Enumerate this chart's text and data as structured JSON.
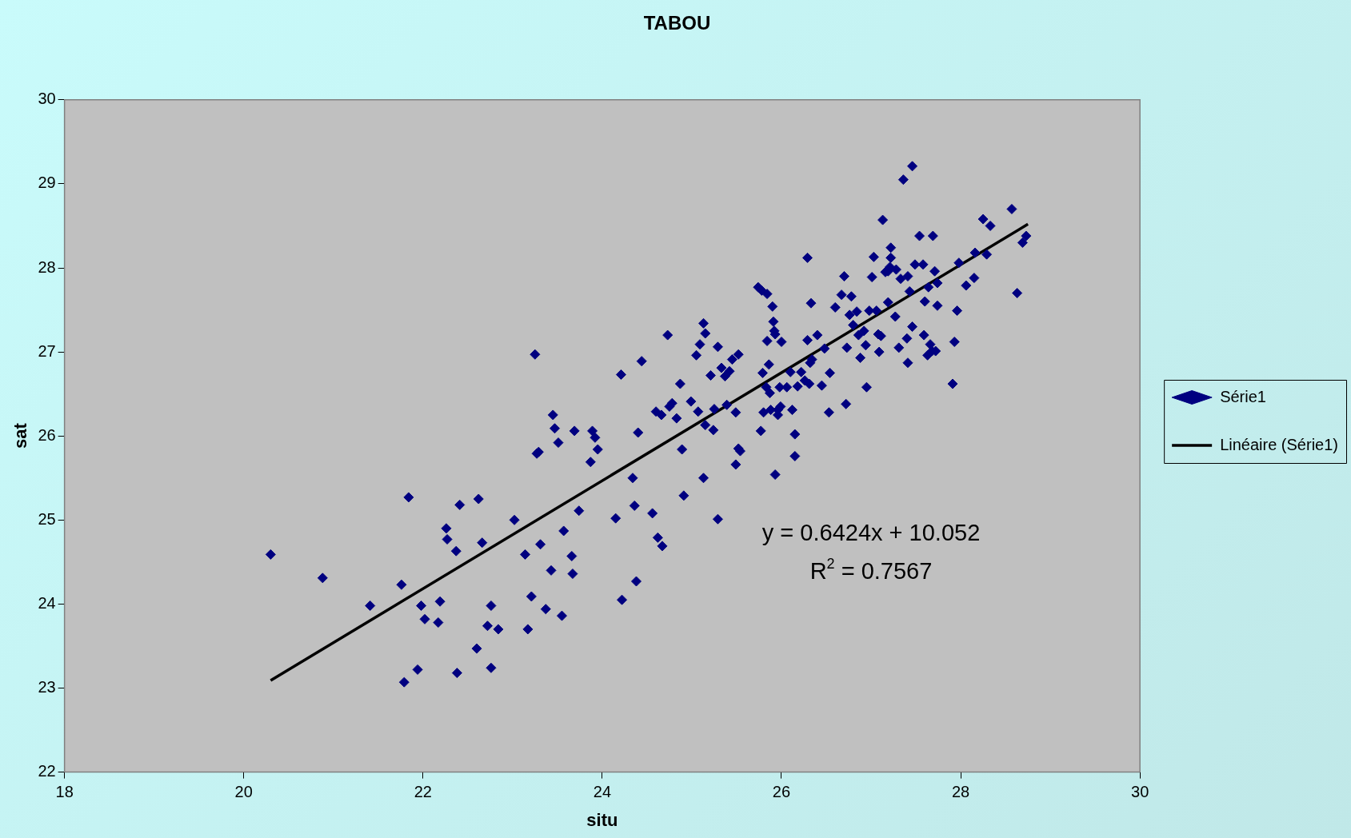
{
  "chart_data": {
    "type": "scatter",
    "title": "TABOU",
    "xlabel": "situ",
    "ylabel": "sat",
    "xlim": [
      18,
      30
    ],
    "xticks": [
      18,
      20,
      22,
      24,
      26,
      28,
      30
    ],
    "ylim": [
      22,
      30
    ],
    "yticks": [
      22,
      23,
      24,
      25,
      26,
      27,
      28,
      29,
      30
    ],
    "legend": "right",
    "marker": "diamond",
    "annotations": [
      "y = 0.6424x + 10.052",
      "R$^{2}$ = 0.7567"
    ],
    "series": [
      {
        "name": "Série1",
        "color": "#000080",
        "x": [
          20.3,
          20.88,
          21.41,
          21.76,
          21.84,
          21.79,
          21.94,
          21.98,
          22.02,
          22.17,
          22.19,
          22.26,
          22.27,
          22.37,
          22.41,
          22.38,
          22.6,
          22.62,
          22.66,
          22.72,
          22.76,
          22.76,
          22.84,
          23.02,
          23.14,
          23.17,
          23.21,
          23.25,
          23.27,
          23.29,
          23.31,
          23.37,
          23.43,
          23.45,
          23.47,
          23.51,
          23.55,
          23.57,
          23.66,
          23.67,
          23.69,
          23.74,
          23.87,
          23.89,
          23.92,
          23.95,
          24.15,
          24.21,
          24.22,
          24.34,
          24.36,
          24.38,
          24.4,
          24.44,
          24.56,
          24.6,
          24.62,
          24.66,
          24.67,
          24.73,
          24.75,
          24.78,
          24.83,
          24.87,
          24.89,
          24.91,
          24.99,
          25.05,
          25.07,
          25.09,
          25.13,
          25.15,
          25.13,
          25.15,
          25.21,
          25.24,
          25.25,
          25.29,
          25.29,
          25.33,
          25.37,
          25.39,
          25.42,
          25.45,
          25.49,
          25.49,
          25.52,
          25.52,
          25.54,
          25.74,
          25.78,
          25.84,
          25.77,
          25.79,
          25.8,
          25.83,
          25.84,
          25.86,
          25.87,
          25.88,
          25.9,
          25.91,
          25.92,
          25.93,
          25.93,
          25.96,
          25.96,
          25.98,
          26.0,
          25.99,
          26.06,
          26.1,
          26.12,
          26.15,
          26.15,
          26.18,
          26.22,
          26.26,
          26.29,
          26.29,
          26.31,
          26.32,
          26.33,
          26.34,
          26.4,
          26.45,
          26.48,
          26.53,
          26.54,
          26.6,
          26.67,
          26.7,
          26.72,
          26.73,
          26.76,
          26.78,
          26.8,
          26.84,
          26.86,
          26.88,
          26.92,
          26.94,
          26.95,
          26.98,
          27.01,
          27.03,
          27.06,
          27.08,
          27.09,
          27.11,
          27.13,
          27.16,
          27.19,
          27.19,
          27.21,
          27.22,
          27.22,
          27.27,
          27.28,
          27.31,
          27.33,
          27.36,
          27.4,
          27.41,
          27.41,
          27.43,
          27.46,
          27.46,
          27.49,
          27.54,
          27.58,
          27.59,
          27.6,
          27.63,
          27.66,
          27.64,
          27.69,
          27.68,
          27.71,
          27.72,
          27.74,
          27.74,
          27.91,
          27.93,
          27.96,
          27.98,
          28.06,
          28.15,
          28.16,
          28.25,
          28.29,
          28.33,
          28.57,
          28.63,
          28.69,
          28.73
        ],
        "values": [
          24.59,
          24.31,
          23.98,
          24.23,
          25.27,
          23.07,
          23.22,
          23.98,
          23.82,
          23.78,
          24.03,
          24.9,
          24.77,
          24.63,
          25.18,
          23.18,
          23.47,
          25.25,
          24.73,
          23.74,
          23.98,
          23.24,
          23.7,
          25.0,
          24.59,
          23.7,
          24.09,
          26.97,
          25.79,
          25.81,
          24.71,
          23.94,
          24.4,
          26.25,
          26.09,
          25.92,
          23.86,
          24.87,
          24.57,
          24.36,
          26.06,
          25.11,
          25.69,
          26.06,
          25.98,
          25.84,
          25.02,
          26.73,
          24.05,
          25.5,
          25.17,
          24.27,
          26.04,
          26.89,
          25.08,
          26.29,
          24.79,
          26.25,
          24.69,
          27.2,
          26.35,
          26.39,
          26.21,
          26.62,
          25.84,
          25.29,
          26.41,
          26.96,
          26.29,
          27.09,
          27.34,
          27.22,
          25.5,
          26.13,
          26.72,
          26.07,
          26.32,
          27.06,
          25.01,
          26.81,
          26.71,
          26.37,
          26.77,
          26.91,
          25.66,
          26.28,
          26.97,
          25.85,
          25.82,
          27.77,
          27.73,
          27.69,
          26.06,
          26.75,
          26.28,
          26.58,
          27.13,
          26.85,
          26.51,
          26.31,
          27.54,
          27.36,
          27.25,
          27.21,
          25.54,
          26.31,
          26.25,
          26.58,
          27.12,
          26.35,
          26.58,
          26.76,
          26.31,
          25.76,
          26.02,
          26.59,
          26.76,
          26.66,
          28.12,
          27.14,
          26.62,
          26.87,
          27.58,
          26.91,
          27.2,
          26.6,
          27.04,
          26.28,
          26.75,
          27.53,
          27.68,
          27.9,
          26.38,
          27.05,
          27.44,
          27.66,
          27.32,
          27.48,
          27.2,
          26.93,
          27.25,
          27.08,
          26.58,
          27.49,
          27.89,
          28.13,
          27.49,
          27.21,
          27.0,
          27.19,
          28.57,
          27.95,
          27.59,
          27.96,
          28.01,
          28.12,
          28.24,
          27.42,
          27.98,
          27.05,
          27.87,
          29.05,
          27.16,
          26.87,
          27.9,
          27.72,
          29.21,
          27.3,
          28.04,
          28.38,
          28.04,
          27.2,
          27.6,
          26.96,
          27.09,
          27.77,
          28.38,
          27.01,
          27.96,
          27.01,
          27.55,
          27.82,
          26.62,
          27.12,
          27.49,
          28.06,
          27.79,
          27.88,
          28.18,
          28.58,
          28.16,
          28.5,
          28.7,
          27.7,
          28.3,
          28.38
        ]
      },
      {
        "name": "Linéaire (Série1)",
        "color": "#000000",
        "type": "line",
        "marker": "none",
        "line_style": "solid",
        "x": [
          20.3,
          28.75
        ],
        "values": [
          23.09,
          28.52
        ]
      }
    ]
  }
}
